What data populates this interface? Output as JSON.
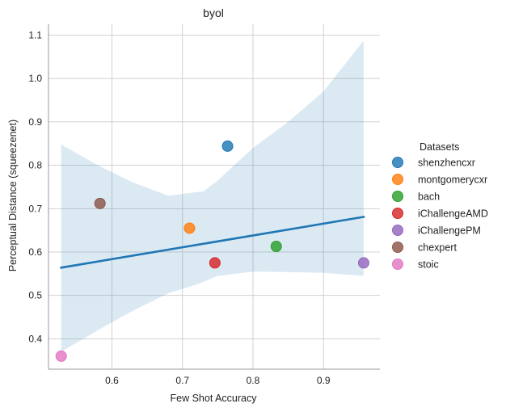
{
  "chart_data": {
    "type": "scatter",
    "title": "byol",
    "xlabel": "Few Shot Accuracy",
    "ylabel": "Perceptual Distance (squeezenet)",
    "xlim": [
      0.51,
      0.98
    ],
    "ylim": [
      0.33,
      1.125
    ],
    "xticks": [
      0.6,
      0.7,
      0.8,
      0.9
    ],
    "yticks": [
      0.4,
      0.5,
      0.6,
      0.7,
      0.8,
      0.9,
      1.0,
      1.1
    ],
    "grid": true,
    "legend": {
      "title": "Datasets",
      "placement": "right"
    },
    "points": [
      {
        "name": "shenzhencxr",
        "x": 0.764,
        "y": 0.844,
        "color": "#1f77b4"
      },
      {
        "name": "montgomerycxr",
        "x": 0.71,
        "y": 0.655,
        "color": "#ff7f0e"
      },
      {
        "name": "bach",
        "x": 0.833,
        "y": 0.613,
        "color": "#2ca02c"
      },
      {
        "name": "iChallengeAMD",
        "x": 0.746,
        "y": 0.575,
        "color": "#d62728"
      },
      {
        "name": "iChallengePM",
        "x": 0.957,
        "y": 0.575,
        "color": "#9467bd"
      },
      {
        "name": "chexpert",
        "x": 0.583,
        "y": 0.712,
        "color": "#8c564b"
      },
      {
        "name": "stoic",
        "x": 0.528,
        "y": 0.36,
        "color": "#e377c2"
      }
    ],
    "regression": {
      "color": "#1f77b4",
      "x": [
        0.528,
        0.957
      ],
      "y": [
        0.564,
        0.681
      ],
      "ci_upper": [
        [
          0.528,
          0.848
        ],
        [
          0.58,
          0.8
        ],
        [
          0.63,
          0.76
        ],
        [
          0.68,
          0.73
        ],
        [
          0.73,
          0.74
        ],
        [
          0.75,
          0.765
        ],
        [
          0.8,
          0.84
        ],
        [
          0.85,
          0.9
        ],
        [
          0.9,
          0.97
        ],
        [
          0.957,
          1.087
        ]
      ],
      "ci_lower": [
        [
          0.957,
          0.545
        ],
        [
          0.9,
          0.552
        ],
        [
          0.85,
          0.554
        ],
        [
          0.8,
          0.555
        ],
        [
          0.75,
          0.545
        ],
        [
          0.72,
          0.525
        ],
        [
          0.68,
          0.505
        ],
        [
          0.63,
          0.465
        ],
        [
          0.58,
          0.42
        ],
        [
          0.528,
          0.37
        ]
      ]
    }
  }
}
